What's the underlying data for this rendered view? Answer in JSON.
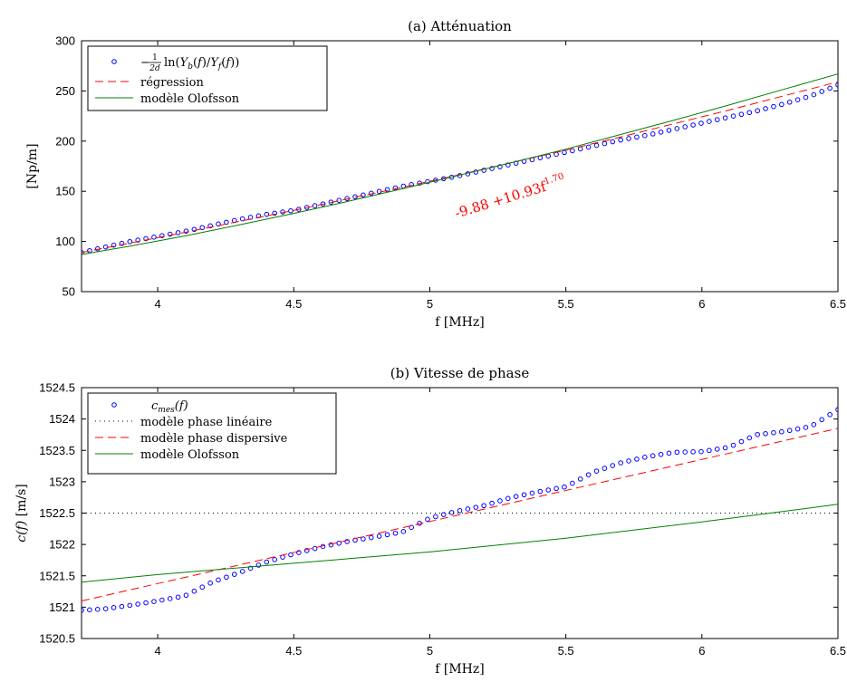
{
  "chart_data": [
    {
      "type": "line",
      "title": "(a) Atténuation",
      "xlabel": "f [MHz]",
      "ylabel": "[Np/m]",
      "xlim": [
        3.72,
        6.5
      ],
      "ylim": [
        50,
        300
      ],
      "xticks": [
        4,
        4.5,
        5,
        5.5,
        6,
        6.5
      ],
      "yticks": [
        50,
        100,
        150,
        200,
        250,
        300
      ],
      "xtick_labels": [
        "4",
        "4.5",
        "5",
        "5.5",
        "6",
        "6.5"
      ],
      "ytick_labels": [
        "50",
        "100",
        "150",
        "200",
        "250",
        "300"
      ],
      "grid": false,
      "legend_position": "top-left",
      "annotation": {
        "text": "-9.88 +10.93f",
        "superscript": "1.70",
        "x": 5.3,
        "y": 140,
        "rotation": -17
      },
      "series": [
        {
          "name": "−(1/2d) ln(Yb(f)/Yf(f))",
          "legend": {
            "prefix": "−",
            "frac_num": "1",
            "frac_den": "2d",
            "rest": "ln(Y",
            "s1": "b",
            "mid": "(f)/Y",
            "s2": "f",
            "end": "(f))"
          },
          "style": "circle",
          "color": "#0000ff",
          "x": [
            3.72,
            3.8,
            3.9,
            4.0,
            4.1,
            4.2,
            4.3,
            4.4,
            4.5,
            4.6,
            4.7,
            4.8,
            4.9,
            5.0,
            5.1,
            5.2,
            5.3,
            5.4,
            5.5,
            5.6,
            5.7,
            5.8,
            5.9,
            6.0,
            6.1,
            6.2,
            6.3,
            6.4,
            6.5
          ],
          "y": [
            89,
            94,
            100,
            105,
            110,
            116,
            122,
            127,
            131,
            137,
            143,
            149,
            155,
            160,
            165,
            171,
            177,
            183,
            189,
            195,
            201,
            206,
            212,
            218,
            224,
            230,
            237,
            245,
            256
          ]
        },
        {
          "name": "régression",
          "style": "dashed",
          "color": "#ff0000",
          "x": [
            3.72,
            3.9,
            4.1,
            4.3,
            4.5,
            4.7,
            4.9,
            5.1,
            5.3,
            5.5,
            5.7,
            5.9,
            6.1,
            6.3,
            6.5
          ],
          "y": [
            89,
            98.5,
            109,
            120,
            131,
            142.5,
            154,
            166,
            178.5,
            191,
            204,
            217.5,
            231,
            245,
            259
          ]
        },
        {
          "name": "modèle Olofsson",
          "style": "solid",
          "color": "#008000",
          "x": [
            3.72,
            3.9,
            4.1,
            4.3,
            4.5,
            4.7,
            4.9,
            5.1,
            5.3,
            5.5,
            5.7,
            5.9,
            6.1,
            6.3,
            6.5
          ],
          "y": [
            87,
            95.5,
            105.5,
            116.5,
            128,
            140,
            152.5,
            165.5,
            178.5,
            192,
            206.5,
            221,
            236,
            251.5,
            267
          ]
        }
      ]
    },
    {
      "type": "line",
      "title": "(b) Vitesse de phase",
      "xlabel": "f [MHz]",
      "ylabel": "c(f) [m/s]",
      "xlim": [
        3.72,
        6.5
      ],
      "ylim": [
        1520.5,
        1524.5
      ],
      "xticks": [
        4,
        4.5,
        5,
        5.5,
        6,
        6.5
      ],
      "yticks": [
        1520.5,
        1521,
        1521.5,
        1522,
        1522.5,
        1523,
        1523.5,
        1524,
        1524.5
      ],
      "xtick_labels": [
        "4",
        "4.5",
        "5",
        "5.5",
        "6",
        "6.5"
      ],
      "ytick_labels": [
        "1520.5",
        "1521",
        "1521.5",
        "1522",
        "1522.5",
        "1523",
        "1523.5",
        "1524",
        "1524.5"
      ],
      "grid": false,
      "legend_position": "top-left",
      "series": [
        {
          "name": "cmes(f)",
          "legend": {
            "base": "c",
            "sub": "mes",
            "end": "(f)"
          },
          "style": "circle",
          "color": "#0000ff",
          "x": [
            3.72,
            3.8,
            3.9,
            4.0,
            4.1,
            4.2,
            4.3,
            4.4,
            4.5,
            4.6,
            4.7,
            4.8,
            4.9,
            5.0,
            5.1,
            5.2,
            5.3,
            5.4,
            5.5,
            5.6,
            5.7,
            5.8,
            5.9,
            6.0,
            6.1,
            6.2,
            6.3,
            6.4,
            6.5
          ],
          "y": [
            1520.95,
            1520.97,
            1521.03,
            1521.1,
            1521.18,
            1521.4,
            1521.55,
            1521.72,
            1521.85,
            1521.96,
            1522.05,
            1522.12,
            1522.2,
            1522.42,
            1522.53,
            1522.62,
            1522.75,
            1522.84,
            1522.92,
            1523.15,
            1523.3,
            1523.4,
            1523.47,
            1523.48,
            1523.55,
            1523.75,
            1523.8,
            1523.88,
            1524.15
          ]
        },
        {
          "name": "modèle phase linéaire",
          "style": "dotted",
          "color": "#000000",
          "x": [
            3.72,
            6.5
          ],
          "y": [
            1522.5,
            1522.5
          ]
        },
        {
          "name": "modèle phase dispersive",
          "style": "dashed",
          "color": "#ff0000",
          "x": [
            3.72,
            6.5
          ],
          "y": [
            1521.1,
            1523.85
          ]
        },
        {
          "name": "modèle Olofsson",
          "style": "solid",
          "color": "#008000",
          "x": [
            3.72,
            4.0,
            4.5,
            5.0,
            5.5,
            6.0,
            6.5
          ],
          "y": [
            1521.4,
            1521.52,
            1521.7,
            1521.88,
            1522.1,
            1522.36,
            1522.64
          ]
        }
      ]
    }
  ]
}
